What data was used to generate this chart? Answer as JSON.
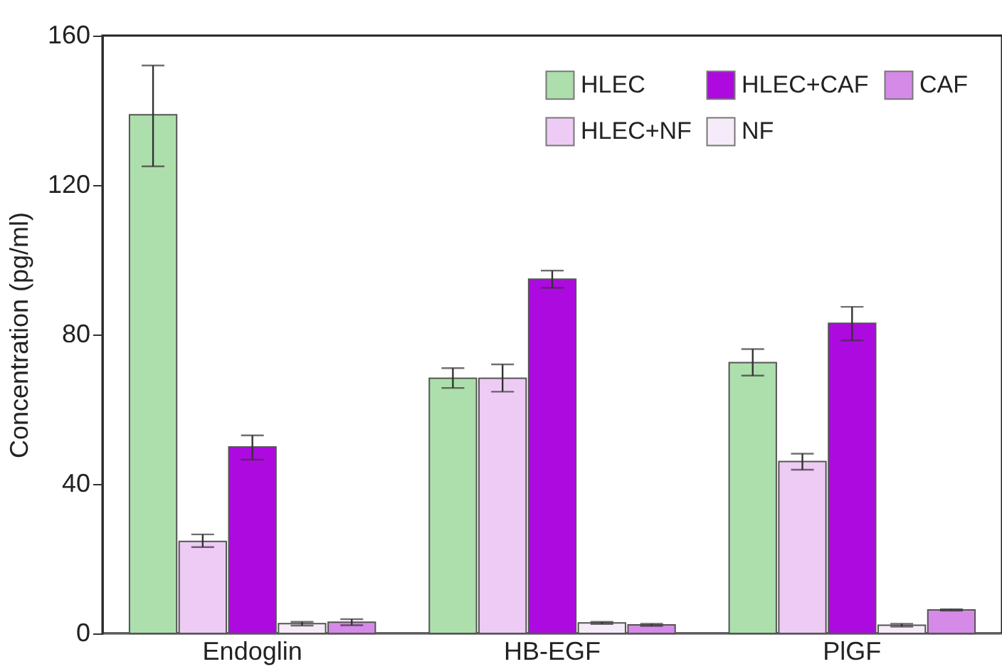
{
  "chart_data": {
    "type": "bar",
    "ylabel": "Concentration (pg/ml)",
    "categories": [
      "Endoglin",
      "HB-EGF",
      "PlGF"
    ],
    "series": [
      {
        "name": "HLEC",
        "color": "#addfad",
        "values": [
          138.8,
          68.3,
          72.5
        ],
        "errors": [
          [
            125,
            152
          ],
          [
            65.7,
            71
          ],
          [
            69,
            76.1
          ]
        ]
      },
      {
        "name": "HLEC+NF",
        "color": "#eecbf5",
        "values": [
          24.6,
          68.3,
          46
        ],
        "errors": [
          [
            23.1,
            26.5
          ],
          [
            64.7,
            72
          ],
          [
            43.8,
            48.1
          ]
        ]
      },
      {
        "name": "HLEC+CAF",
        "color": "#ad0ae0",
        "values": [
          49.9,
          94.8,
          83
        ],
        "errors": [
          [
            46.5,
            53
          ],
          [
            92.5,
            97.1
          ],
          [
            78.4,
            87.4
          ]
        ]
      },
      {
        "name": "NF",
        "color": "#f6ecf9",
        "values": [
          2.6,
          2.8,
          2.2
        ],
        "errors": [
          [
            2.1,
            3.1
          ],
          [
            2.5,
            3.1
          ],
          [
            1.8,
            2.6
          ]
        ]
      },
      {
        "name": "CAF",
        "color": "#d68ae8",
        "values": [
          3,
          2.3,
          6.3
        ],
        "errors": [
          [
            2.2,
            3.8
          ],
          [
            2,
            2.6
          ],
          [
            6.1,
            6.5
          ]
        ]
      }
    ],
    "ylim": [
      0,
      160
    ],
    "yticks": [
      0,
      40,
      80,
      120,
      160
    ],
    "grid": false,
    "legend": "top right"
  }
}
